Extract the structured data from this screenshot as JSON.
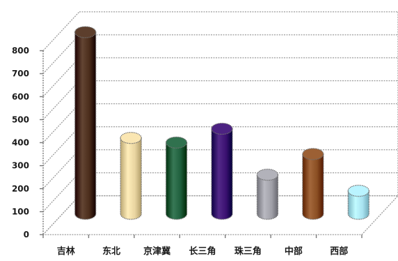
{
  "chart_data": {
    "type": "bar",
    "style": "3d-cylinder",
    "title": "",
    "xlabel": "",
    "ylabel": "",
    "categories": [
      "吉林",
      "东北",
      "京津冀",
      "长三角",
      "珠三角",
      "中部",
      "西部"
    ],
    "values": [
      790,
      330,
      310,
      370,
      170,
      260,
      100
    ],
    "ylim": [
      0,
      800
    ],
    "yticks": [
      0,
      100,
      200,
      300,
      400,
      500,
      600,
      700,
      800
    ],
    "grid": true,
    "legend": "none",
    "colors": [
      "#4a2c1a",
      "#e8d4a0",
      "#1e5f3c",
      "#3a1070",
      "#a0a0a8",
      "#8a4e22",
      "#a8e2f0"
    ]
  }
}
